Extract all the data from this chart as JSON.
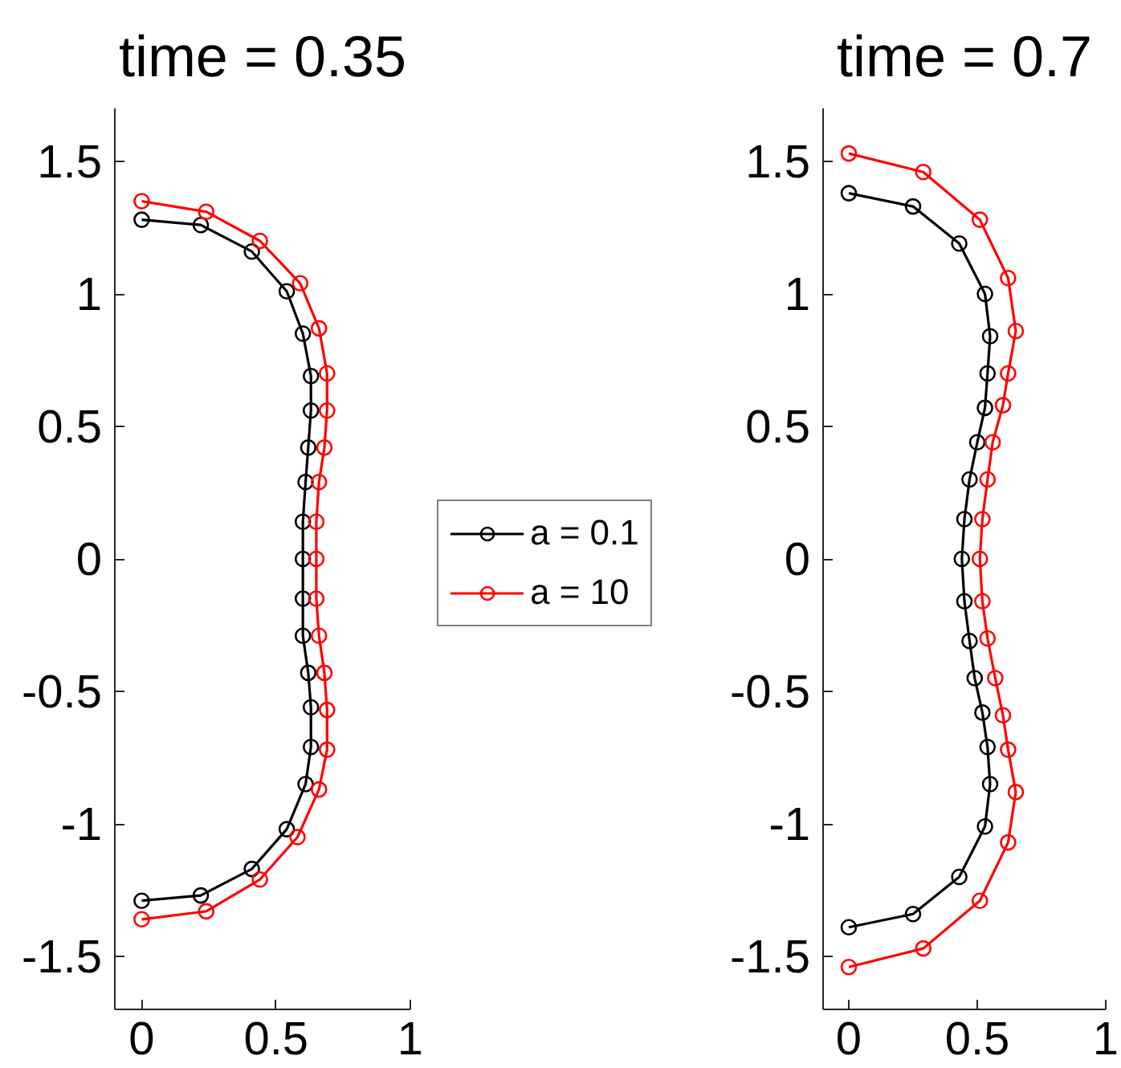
{
  "chart_data": [
    {
      "type": "line",
      "title": "time = 0.35",
      "marker": "circle",
      "legend": "right",
      "xlim": [
        -0.1,
        1
      ],
      "ylim": [
        -1.7,
        1.7
      ],
      "xticks": [
        0,
        0.5,
        1
      ],
      "yticks": [
        -1.5,
        -1,
        -0.5,
        0,
        0.5,
        1,
        1.5
      ],
      "series": [
        {
          "name": "a = 0.1",
          "color": "#000000",
          "x": [
            0,
            0.22,
            0.41,
            0.54,
            0.6,
            0.63,
            0.63,
            0.62,
            0.61,
            0.6,
            0.6,
            0.6,
            0.6,
            0.62,
            0.63,
            0.63,
            0.61,
            0.54,
            0.41,
            0.22,
            0
          ],
          "values": [
            1.28,
            1.26,
            1.16,
            1.01,
            0.85,
            0.69,
            0.56,
            0.42,
            0.29,
            0.14,
            0,
            -0.15,
            -0.29,
            -0.43,
            -0.56,
            -0.71,
            -0.85,
            -1.02,
            -1.17,
            -1.27,
            -1.29
          ]
        },
        {
          "name": "a = 10",
          "color": "#ff0000",
          "x": [
            0,
            0.24,
            0.44,
            0.59,
            0.66,
            0.69,
            0.69,
            0.68,
            0.66,
            0.65,
            0.65,
            0.65,
            0.66,
            0.68,
            0.69,
            0.69,
            0.66,
            0.58,
            0.44,
            0.24,
            0
          ],
          "values": [
            1.35,
            1.31,
            1.2,
            1.04,
            0.87,
            0.7,
            0.56,
            0.42,
            0.29,
            0.14,
            0,
            -0.15,
            -0.29,
            -0.43,
            -0.57,
            -0.72,
            -0.87,
            -1.05,
            -1.21,
            -1.33,
            -1.36
          ]
        }
      ]
    },
    {
      "type": "line",
      "title": "time = 0.7",
      "marker": "circle",
      "xlim": [
        -0.1,
        1
      ],
      "ylim": [
        -1.7,
        1.7
      ],
      "xticks": [
        0,
        0.5,
        1
      ],
      "yticks": [
        -1.5,
        -1,
        -0.5,
        0,
        0.5,
        1,
        1.5
      ],
      "series": [
        {
          "color": "#000000",
          "x": [
            0,
            0.25,
            0.43,
            0.53,
            0.55,
            0.54,
            0.53,
            0.5,
            0.47,
            0.45,
            0.44,
            0.45,
            0.47,
            0.49,
            0.52,
            0.54,
            0.55,
            0.53,
            0.43,
            0.25,
            0
          ],
          "values": [
            1.38,
            1.33,
            1.19,
            1.0,
            0.84,
            0.7,
            0.57,
            0.44,
            0.3,
            0.15,
            0,
            -0.16,
            -0.31,
            -0.45,
            -0.58,
            -0.71,
            -0.85,
            -1.01,
            -1.2,
            -1.34,
            -1.39
          ]
        },
        {
          "color": "#ff0000",
          "x": [
            0,
            0.29,
            0.51,
            0.62,
            0.65,
            0.62,
            0.6,
            0.56,
            0.54,
            0.52,
            0.51,
            0.52,
            0.54,
            0.57,
            0.6,
            0.62,
            0.65,
            0.62,
            0.51,
            0.29,
            0
          ],
          "values": [
            1.53,
            1.46,
            1.28,
            1.06,
            0.86,
            0.7,
            0.58,
            0.44,
            0.3,
            0.15,
            0,
            -0.16,
            -0.3,
            -0.45,
            -0.59,
            -0.72,
            -0.88,
            -1.07,
            -1.29,
            -1.47,
            -1.54
          ]
        }
      ]
    }
  ]
}
